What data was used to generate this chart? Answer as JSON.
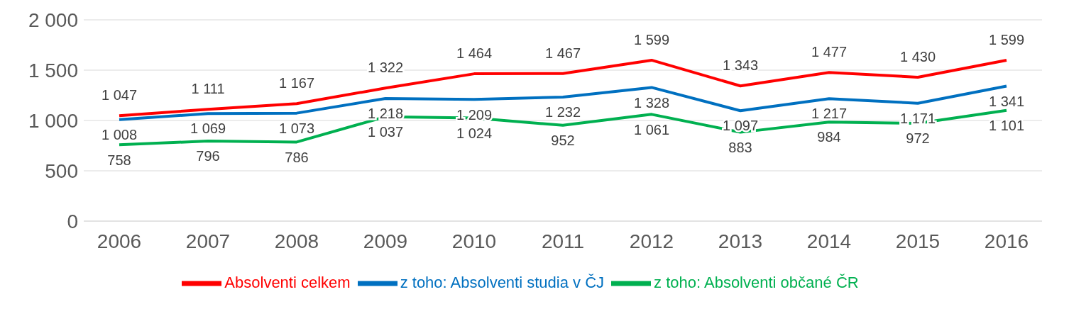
{
  "chart_data": {
    "type": "line",
    "categories": [
      "2006",
      "2007",
      "2008",
      "2009",
      "2010",
      "2011",
      "2012",
      "2013",
      "2014",
      "2015",
      "2016"
    ],
    "series": [
      {
        "name": "Absolventi celkem",
        "color": "#ff0000",
        "values": [
          1047,
          1111,
          1167,
          1322,
          1464,
          1467,
          1599,
          1343,
          1477,
          1430,
          1599
        ]
      },
      {
        "name": "z toho: Absolventi studia v ČJ",
        "color": "#0070c0",
        "values": [
          1008,
          1069,
          1073,
          1218,
          1209,
          1232,
          1328,
          1097,
          1217,
          1171,
          1341
        ]
      },
      {
        "name": "z toho: Absolventi občané ČR",
        "color": "#00b050",
        "values": [
          758,
          796,
          786,
          1037,
          1024,
          952,
          1061,
          883,
          984,
          972,
          1101
        ]
      }
    ],
    "ylim": [
      0,
      2000
    ],
    "yticks": [
      0,
      500,
      {
        "value": 1000,
        "label": "1 000"
      },
      {
        "value": 1500,
        "label": "1 500"
      },
      {
        "value": 2000,
        "label": "2 000"
      }
    ],
    "grid": "y",
    "legend": "bottom",
    "marker": "none",
    "line_style": "solid",
    "data_labels": true
  }
}
